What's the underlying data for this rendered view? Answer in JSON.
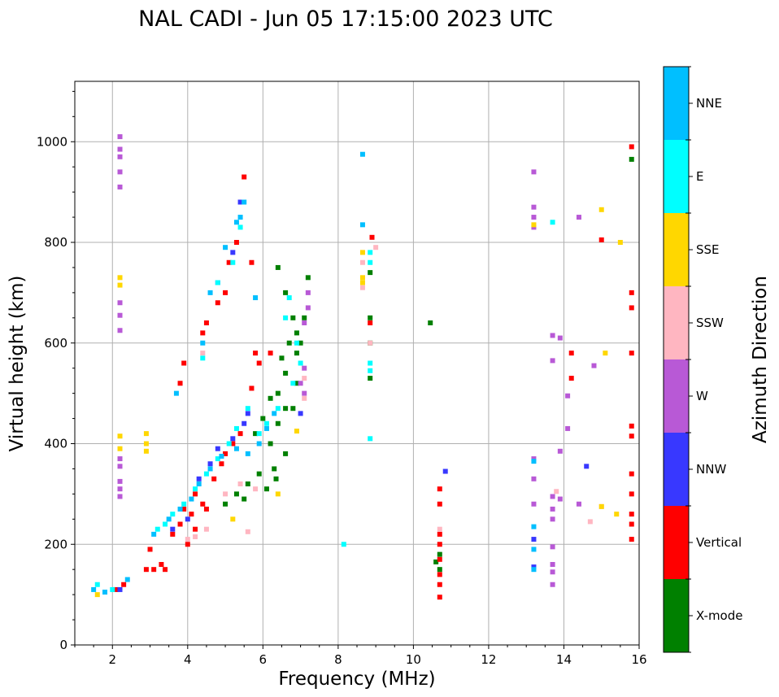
{
  "chart_data": {
    "type": "scatter",
    "title": "NAL CADI - Jun 05 17:15:00 2023 UTC",
    "xlabel": "Frequency (MHz)",
    "ylabel": "Virtual height (km)",
    "xlim": [
      1,
      16
    ],
    "ylim": [
      0,
      1120
    ],
    "xticks": [
      2,
      4,
      6,
      8,
      10,
      12,
      14,
      16
    ],
    "yticks": [
      0,
      200,
      400,
      600,
      800,
      1000
    ],
    "grid": true,
    "colorbar": {
      "label": "Azimuth Direction",
      "placement": "right",
      "categories": [
        {
          "name": "X-mode",
          "color": "#008000"
        },
        {
          "name": "Vertical",
          "color": "#ff0000"
        },
        {
          "name": "NNW",
          "color": "#3838ff"
        },
        {
          "name": "W",
          "color": "#b859d6"
        },
        {
          "name": "SSW",
          "color": "#ffb6c1"
        },
        {
          "name": "SSE",
          "color": "#ffd700"
        },
        {
          "name": "E",
          "color": "#00ffff"
        },
        {
          "name": "NNE",
          "color": "#00bfff"
        }
      ]
    },
    "series": [
      {
        "name": "X-mode",
        "points": [
          [
            6.4,
            750
          ],
          [
            6.6,
            700
          ],
          [
            6.8,
            650
          ],
          [
            6.9,
            620
          ],
          [
            6.7,
            600
          ],
          [
            6.5,
            570
          ],
          [
            6.9,
            580
          ],
          [
            6.6,
            540
          ],
          [
            6.4,
            500
          ],
          [
            6.9,
            520
          ],
          [
            6.2,
            490
          ],
          [
            6.6,
            470
          ],
          [
            6.0,
            450
          ],
          [
            6.4,
            440
          ],
          [
            6.8,
            470
          ],
          [
            5.8,
            420
          ],
          [
            6.2,
            400
          ],
          [
            6.6,
            380
          ],
          [
            6.3,
            350
          ],
          [
            5.9,
            340
          ],
          [
            5.6,
            320
          ],
          [
            6.1,
            310
          ],
          [
            5.3,
            300
          ],
          [
            5.0,
            280
          ],
          [
            5.5,
            290
          ],
          [
            6.35,
            330
          ],
          [
            7.2,
            730
          ],
          [
            7.0,
            600
          ],
          [
            7.1,
            650
          ],
          [
            8.85,
            740
          ],
          [
            8.85,
            650
          ],
          [
            8.85,
            600
          ],
          [
            8.85,
            530
          ],
          [
            10.45,
            640
          ],
          [
            10.7,
            180
          ],
          [
            10.6,
            165
          ],
          [
            10.7,
            150
          ],
          [
            15.8,
            965
          ]
        ]
      },
      {
        "name": "Vertical",
        "points": [
          [
            2.1,
            110
          ],
          [
            2.3,
            120
          ],
          [
            2.9,
            150
          ],
          [
            3.0,
            190
          ],
          [
            3.4,
            150
          ],
          [
            3.6,
            220
          ],
          [
            3.8,
            240
          ],
          [
            4.0,
            200
          ],
          [
            4.1,
            260
          ],
          [
            4.2,
            300
          ],
          [
            3.9,
            270
          ],
          [
            4.5,
            270
          ],
          [
            4.7,
            330
          ],
          [
            4.9,
            360
          ],
          [
            5.0,
            380
          ],
          [
            5.2,
            400
          ],
          [
            5.4,
            420
          ],
          [
            4.4,
            280
          ],
          [
            3.8,
            520
          ],
          [
            3.9,
            560
          ],
          [
            4.4,
            620
          ],
          [
            4.5,
            640
          ],
          [
            4.8,
            680
          ],
          [
            5.0,
            700
          ],
          [
            5.1,
            760
          ],
          [
            5.3,
            800
          ],
          [
            5.5,
            930
          ],
          [
            5.7,
            760
          ],
          [
            5.8,
            580
          ],
          [
            5.9,
            560
          ],
          [
            5.7,
            510
          ],
          [
            6.2,
            580
          ],
          [
            3.3,
            160
          ],
          [
            3.1,
            150
          ],
          [
            4.2,
            230
          ],
          [
            8.9,
            810
          ],
          [
            8.85,
            640
          ],
          [
            10.7,
            310
          ],
          [
            10.7,
            280
          ],
          [
            10.7,
            220
          ],
          [
            10.7,
            200
          ],
          [
            10.7,
            170
          ],
          [
            10.7,
            140
          ],
          [
            10.7,
            120
          ],
          [
            10.7,
            95
          ],
          [
            14.2,
            580
          ],
          [
            14.2,
            530
          ],
          [
            15.0,
            805
          ],
          [
            15.8,
            990
          ],
          [
            15.8,
            700
          ],
          [
            15.8,
            670
          ],
          [
            15.8,
            580
          ],
          [
            15.8,
            435
          ],
          [
            15.8,
            415
          ],
          [
            15.8,
            340
          ],
          [
            15.8,
            300
          ],
          [
            15.8,
            260
          ],
          [
            15.8,
            240
          ],
          [
            15.8,
            210
          ]
        ]
      },
      {
        "name": "NNW",
        "points": [
          [
            2.2,
            110
          ],
          [
            3.6,
            230
          ],
          [
            4.0,
            250
          ],
          [
            4.3,
            330
          ],
          [
            4.6,
            360
          ],
          [
            4.8,
            390
          ],
          [
            5.2,
            410
          ],
          [
            5.5,
            440
          ],
          [
            5.6,
            460
          ],
          [
            7.0,
            460
          ],
          [
            4.8,
            720
          ],
          [
            5.2,
            780
          ],
          [
            5.4,
            880
          ],
          [
            10.85,
            345
          ],
          [
            13.2,
            210
          ],
          [
            13.2,
            155
          ],
          [
            14.6,
            355
          ]
        ]
      },
      {
        "name": "W",
        "points": [
          [
            2.2,
            1010
          ],
          [
            2.2,
            985
          ],
          [
            2.2,
            970
          ],
          [
            2.2,
            940
          ],
          [
            2.2,
            910
          ],
          [
            2.2,
            680
          ],
          [
            2.2,
            655
          ],
          [
            2.2,
            625
          ],
          [
            2.2,
            370
          ],
          [
            2.2,
            355
          ],
          [
            2.2,
            325
          ],
          [
            2.2,
            310
          ],
          [
            2.2,
            295
          ],
          [
            7.2,
            700
          ],
          [
            7.2,
            670
          ],
          [
            7.1,
            640
          ],
          [
            7.1,
            550
          ],
          [
            7.0,
            520
          ],
          [
            7.1,
            500
          ],
          [
            13.2,
            940
          ],
          [
            13.2,
            870
          ],
          [
            13.2,
            850
          ],
          [
            13.2,
            830
          ],
          [
            13.2,
            370
          ],
          [
            13.2,
            330
          ],
          [
            13.2,
            280
          ],
          [
            13.7,
            615
          ],
          [
            13.9,
            610
          ],
          [
            13.7,
            565
          ],
          [
            14.1,
            495
          ],
          [
            14.1,
            430
          ],
          [
            13.9,
            385
          ],
          [
            13.7,
            295
          ],
          [
            13.9,
            290
          ],
          [
            13.7,
            270
          ],
          [
            13.7,
            250
          ],
          [
            13.7,
            195
          ],
          [
            13.7,
            160
          ],
          [
            13.7,
            145
          ],
          [
            13.7,
            120
          ],
          [
            14.4,
            850
          ],
          [
            14.4,
            280
          ],
          [
            14.8,
            555
          ]
        ]
      },
      {
        "name": "SSW",
        "points": [
          [
            4.0,
            210
          ],
          [
            4.2,
            215
          ],
          [
            4.5,
            230
          ],
          [
            5.0,
            300
          ],
          [
            5.4,
            320
          ],
          [
            5.8,
            310
          ],
          [
            7.1,
            530
          ],
          [
            7.1,
            490
          ],
          [
            4.4,
            580
          ],
          [
            5.6,
            225
          ],
          [
            8.65,
            760
          ],
          [
            8.65,
            710
          ],
          [
            8.85,
            600
          ],
          [
            9.0,
            790
          ],
          [
            10.7,
            230
          ],
          [
            13.8,
            305
          ],
          [
            14.7,
            245
          ],
          [
            15.0,
            275
          ]
        ]
      },
      {
        "name": "SSE",
        "points": [
          [
            1.6,
            100
          ],
          [
            2.2,
            730
          ],
          [
            2.2,
            715
          ],
          [
            2.2,
            415
          ],
          [
            2.2,
            390
          ],
          [
            2.9,
            420
          ],
          [
            2.9,
            400
          ],
          [
            2.9,
            385
          ],
          [
            5.2,
            250
          ],
          [
            6.4,
            300
          ],
          [
            6.9,
            425
          ],
          [
            8.65,
            780
          ],
          [
            8.65,
            730
          ],
          [
            8.65,
            720
          ],
          [
            13.2,
            835
          ],
          [
            15.0,
            865
          ],
          [
            15.1,
            580
          ],
          [
            15.0,
            275
          ],
          [
            15.4,
            260
          ],
          [
            15.5,
            800
          ]
        ]
      },
      {
        "name": "E",
        "points": [
          [
            1.6,
            120
          ],
          [
            2.0,
            110
          ],
          [
            3.2,
            230
          ],
          [
            3.4,
            240
          ],
          [
            3.6,
            260
          ],
          [
            3.9,
            280
          ],
          [
            4.2,
            310
          ],
          [
            4.5,
            340
          ],
          [
            4.8,
            370
          ],
          [
            5.1,
            400
          ],
          [
            5.3,
            430
          ],
          [
            5.6,
            470
          ],
          [
            5.9,
            420
          ],
          [
            6.1,
            440
          ],
          [
            6.4,
            470
          ],
          [
            6.8,
            520
          ],
          [
            6.7,
            690
          ],
          [
            6.6,
            650
          ],
          [
            6.9,
            600
          ],
          [
            7.0,
            560
          ],
          [
            5.2,
            760
          ],
          [
            5.4,
            830
          ],
          [
            4.4,
            570
          ],
          [
            4.8,
            720
          ],
          [
            8.85,
            780
          ],
          [
            8.85,
            760
          ],
          [
            8.85,
            560
          ],
          [
            8.85,
            545
          ],
          [
            8.85,
            410
          ],
          [
            8.15,
            200
          ],
          [
            13.7,
            840
          ]
        ]
      },
      {
        "name": "NNE",
        "points": [
          [
            1.5,
            110
          ],
          [
            1.8,
            105
          ],
          [
            2.4,
            130
          ],
          [
            3.1,
            220
          ],
          [
            3.5,
            250
          ],
          [
            3.8,
            270
          ],
          [
            4.1,
            290
          ],
          [
            4.3,
            320
          ],
          [
            4.6,
            350
          ],
          [
            4.9,
            375
          ],
          [
            5.3,
            390
          ],
          [
            5.6,
            380
          ],
          [
            5.9,
            400
          ],
          [
            6.1,
            430
          ],
          [
            6.3,
            460
          ],
          [
            3.7,
            500
          ],
          [
            4.4,
            600
          ],
          [
            4.6,
            700
          ],
          [
            5.0,
            790
          ],
          [
            5.3,
            840
          ],
          [
            5.4,
            850
          ],
          [
            5.5,
            880
          ],
          [
            5.8,
            690
          ],
          [
            8.65,
            975
          ],
          [
            8.65,
            835
          ],
          [
            13.2,
            365
          ],
          [
            13.2,
            235
          ],
          [
            13.2,
            190
          ],
          [
            13.2,
            150
          ]
        ]
      }
    ]
  }
}
